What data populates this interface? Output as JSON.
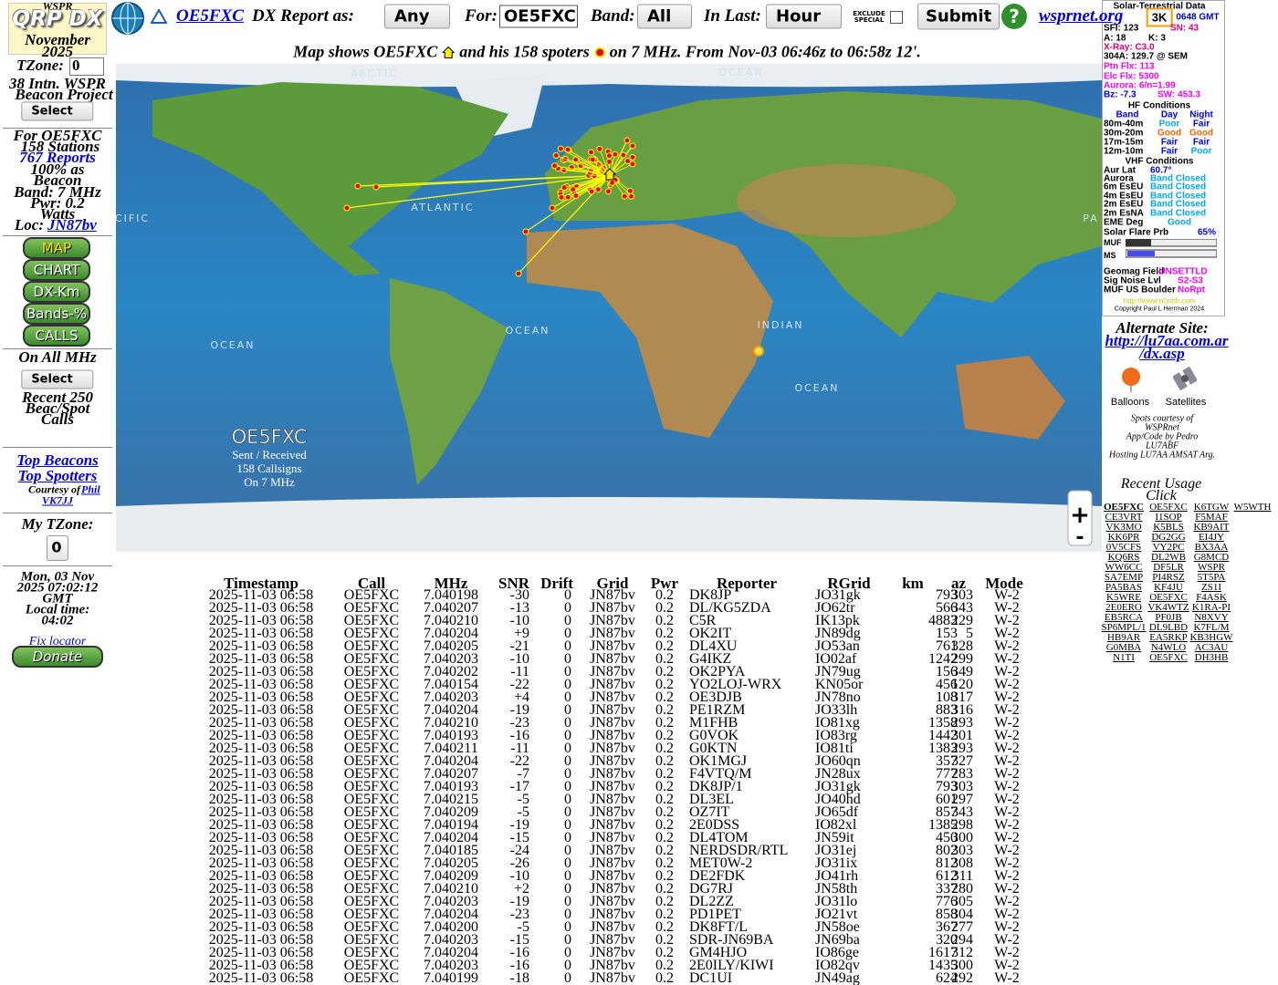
{
  "sidebar": {
    "wspr": "WSPR",
    "logo": "QRP DX",
    "month": "November",
    "year": "2025",
    "tzone_label": "TZone:",
    "tzone_value": "0",
    "project_1": "38 Intn. WSPR",
    "project_2": "Beacon Project",
    "project_select": "Select",
    "for_call": "For OE5FXC",
    "stations": "158 Stations",
    "reports": "767 Reports",
    "beacon_1": "100% as",
    "beacon_2": "Beacon",
    "band": "Band: 7 MHz",
    "pwr": "Pwr: 0.2",
    "watts": "Watts",
    "loc_label": "Loc:",
    "loc": "JN87bv",
    "buttons": [
      "MAP",
      "CHART",
      "DX-Km",
      "Bands-%",
      "CALLS"
    ],
    "all_mhz": "On All MHz",
    "all_select": "Select",
    "recent_1": "Recent 250",
    "recent_2": "Beac/Spot",
    "recent_3": "Calls",
    "top_beacons": "Top Beacons",
    "top_spotters": "Top Spotters",
    "courtesy": "Courtesy of",
    "phil_1": "Phil",
    "phil_2": "VK7JJ",
    "my_tzone": "My TZone:",
    "my_tzone_value": "0",
    "date": "Mon, 03 Nov",
    "time": "2025 07:02:12",
    "gmt": "GMT",
    "local_label": "Local time:",
    "local": "04:02",
    "fix": "Fix locator",
    "donate": "Donate"
  },
  "toolbar": {
    "call": "OE5FXC",
    "report_label": "DX Report as:",
    "report_value": "Any",
    "for_label": "For:",
    "for_value": "OE5FXC",
    "band_label": "Band:",
    "band_value": "All",
    "last_label": "In Last:",
    "last_value": "Hour",
    "exclude_1": "EXCLUDE",
    "exclude_2": "SPECIAL",
    "submit": "Submit",
    "help": "?",
    "site": "wsprnet.org"
  },
  "caption": {
    "part_1": "Map shows OE5FXC",
    "part_2": "and his 158 spoters",
    "part_3": "on 7 MHz. From Nov-03 06:46z to 06:58z 12'."
  },
  "map": {
    "labels": [
      "ARCTIC",
      "OCEAN",
      "ATLANTIC",
      "OCEAN",
      "OCEAN",
      "INDIAN",
      "OCEAN",
      "CIFIC",
      "PA"
    ],
    "overlay": {
      "call": "OE5FXC",
      "line_1": "Sent / Received",
      "line_2": "158 Callsigns",
      "line_3": "On 7 MHz"
    },
    "zoom_in": "+",
    "zoom_out": "-"
  },
  "solar": {
    "title": "Solar-Terrestrial Data",
    "items": [
      "3K",
      "0648 GMT",
      "SFI: 123",
      "SN: 43",
      "A: 18",
      "K: 3",
      "X-Ray: C3.0",
      "304A: 129.7 @ SEM",
      "Ptn Flx: 113",
      "Elc Flx: 5300",
      "Aurora: 6/n=1.99",
      "Bz: -7.3",
      "SW: 453.3",
      "HF Conditions",
      "Band",
      "Day",
      "Night",
      "80m-40m",
      "Poor",
      "Fair",
      "30m-20m",
      "Good",
      "Good",
      "17m-15m",
      "Fair",
      "Fair",
      "12m-10m",
      "Fair",
      "Poor",
      "VHF Conditions",
      "Aur Lat",
      "60.7°",
      "Aurora",
      "Band Closed",
      "6m EsEU",
      "Band Closed",
      "4m EsEU",
      "Band Closed",
      "2m EsEU",
      "Band Closed",
      "2m EsNA",
      "Band Closed",
      "EME Deg",
      "Good",
      "Solar Flare Prb",
      "65%",
      "MUF",
      "MS",
      "Geomag Field",
      "UNSETTLD",
      "Sig Noise Lvl",
      "S2-S3",
      "MUF US Boulder",
      "NoRpt",
      "http://www.n0nbh.com",
      "Copyright Paul L Herrman 2024"
    ]
  },
  "links": {
    "alt_label": "Alternate Site:",
    "alt_url_1": "http://lu7aa.com.ar",
    "alt_url_2": "/dx.asp",
    "balloons": "Balloons",
    "satellites": "Satellites",
    "credit_1": "Spots courtesy of",
    "credit_2": "WSPRnet",
    "credit_3": "App/Code by Pedro",
    "credit_4": "LU7ABF",
    "credit_5": "Hosting LU7AA AMSAT Arg."
  },
  "usage": {
    "title": "Recent Usage",
    "click": "Click",
    "calls": [
      [
        "OE5FXC",
        "OE5FXC",
        "K6TGW",
        "W5WTH"
      ],
      [
        "CE3VRT",
        "I1SOP",
        "F5MAF"
      ],
      [
        "VK3MO",
        "K5BLS",
        "KB9AIT"
      ],
      [
        "KK6PR",
        "DG2GG",
        "EI4JY"
      ],
      [
        "0V5CFS",
        "VY2PC",
        "BX3AA"
      ],
      [
        "KQ6RS",
        "DL2WB",
        "G8MCD"
      ],
      [
        "WW6CC",
        "DF5LR",
        "WSPR"
      ],
      [
        "SA7EMP",
        "PI4RSZ",
        "5T5PA"
      ],
      [
        "PA5BAS",
        "KF4JU",
        "ZS1I"
      ],
      [
        "K5WRE",
        "OE5FXC",
        "F4ASK"
      ],
      [
        "2E0ERO",
        "VK4WTZ",
        "K1RA-PI"
      ],
      [
        "EB5RCA",
        "PF0JB",
        "N8XVY"
      ],
      [
        "SP6MPL/1",
        "DL9LBD",
        "K7FL/M"
      ],
      [
        "HB9AR",
        "EA5RKP",
        "KB3HGW"
      ],
      [
        "G0MBA",
        "N4WLO",
        "AC3AU"
      ],
      [
        "N1TI",
        "OE5FXC",
        "DH3HB"
      ]
    ]
  },
  "table": {
    "headers": [
      "Timestamp",
      "Call",
      "MHz",
      "SNR",
      "Drift",
      "Grid",
      "Pwr",
      "Reporter",
      "RGrid",
      "km",
      "az",
      "Mode"
    ],
    "rows": [
      [
        "2025-11-03 06:58",
        "OE5FXC",
        "7.040198",
        "-30",
        "0",
        "JN87bv",
        "0.2",
        "DK8JP",
        "JO31gk",
        "793",
        "303",
        "W-2"
      ],
      [
        "2025-11-03 06:58",
        "OE5FXC",
        "7.040207",
        "-13",
        "0",
        "JN87bv",
        "0.2",
        "DL/KG5ZDA",
        "JO62tr",
        "566",
        "343",
        "W-2"
      ],
      [
        "2025-11-03 06:58",
        "OE5FXC",
        "7.040210",
        "-10",
        "0",
        "JN87bv",
        "0.2",
        "C5R",
        "IK13pk",
        "4883",
        "229",
        "W-2"
      ],
      [
        "2025-11-03 06:58",
        "OE5FXC",
        "7.040204",
        "+9",
        "0",
        "JN87bv",
        "0.2",
        "OK2IT",
        "JN89dg",
        "153",
        "5",
        "W-2"
      ],
      [
        "2025-11-03 06:58",
        "OE5FXC",
        "7.040205",
        "-21",
        "0",
        "JN87bv",
        "0.2",
        "DL4XU",
        "JO53an",
        "761",
        "328",
        "W-2"
      ],
      [
        "2025-11-03 06:58",
        "OE5FXC",
        "7.040203",
        "-10",
        "0",
        "JN87bv",
        "0.2",
        "G4IKZ",
        "IO02af",
        "1242",
        "299",
        "W-2"
      ],
      [
        "2025-11-03 06:58",
        "OE5FXC",
        "7.040202",
        "-11",
        "0",
        "JN87bv",
        "0.2",
        "OK2PYA",
        "JN79ug",
        "156",
        "349",
        "W-2"
      ],
      [
        "2025-11-03 06:58",
        "OE5FXC",
        "7.040154",
        "-22",
        "0",
        "JN87bv",
        "0.2",
        "YO2LOJ-WRX",
        "KN05or",
        "456",
        "120",
        "W-2"
      ],
      [
        "2025-11-03 06:58",
        "OE5FXC",
        "7.040203",
        "+4",
        "0",
        "JN87bv",
        "0.2",
        "OE3DJB",
        "JN78no",
        "108",
        "317",
        "W-2"
      ],
      [
        "2025-11-03 06:58",
        "OE5FXC",
        "7.040204",
        "-19",
        "0",
        "JN87bv",
        "0.2",
        "PE1RZM",
        "JO33lh",
        "883",
        "316",
        "W-2"
      ],
      [
        "2025-11-03 06:58",
        "OE5FXC",
        "7.040210",
        "-23",
        "0",
        "JN87bv",
        "0.2",
        "M1FHB",
        "IO81xg",
        "1358",
        "293",
        "W-2"
      ],
      [
        "2025-11-03 06:58",
        "OE5FXC",
        "7.040193",
        "-16",
        "0",
        "JN87bv",
        "0.2",
        "G0VOK",
        "IO83rg",
        "1442",
        "301",
        "W-2"
      ],
      [
        "2025-11-03 06:58",
        "OE5FXC",
        "7.040211",
        "-11",
        "0",
        "JN87bv",
        "0.2",
        "G0KTN",
        "IO81ti",
        "1383",
        "293",
        "W-2"
      ],
      [
        "2025-11-03 06:58",
        "OE5FXC",
        "7.040204",
        "-22",
        "0",
        "JN87bv",
        "0.2",
        "OK1MGJ",
        "JO60qn",
        "357",
        "327",
        "W-2"
      ],
      [
        "2025-11-03 06:58",
        "OE5FXC",
        "7.040207",
        "-7",
        "0",
        "JN87bv",
        "0.2",
        "F4VTQ/M",
        "JN28ux",
        "777",
        "283",
        "W-2"
      ],
      [
        "2025-11-03 06:58",
        "OE5FXC",
        "7.040193",
        "-17",
        "0",
        "JN87bv",
        "0.2",
        "DK8JP/1",
        "JO31gk",
        "793",
        "303",
        "W-2"
      ],
      [
        "2025-11-03 06:58",
        "OE5FXC",
        "7.040215",
        "-5",
        "0",
        "JN87bv",
        "0.2",
        "DL3EL",
        "JO40hd",
        "601",
        "297",
        "W-2"
      ],
      [
        "2025-11-03 06:58",
        "OE5FXC",
        "7.040209",
        "-5",
        "0",
        "JN87bv",
        "0.2",
        "OZ7IT",
        "JO65df",
        "857",
        "343",
        "W-2"
      ],
      [
        "2025-11-03 06:58",
        "OE5FXC",
        "7.040194",
        "-19",
        "0",
        "JN87bv",
        "0.2",
        "2E0DSS",
        "IO82xl",
        "1385",
        "298",
        "W-2"
      ],
      [
        "2025-11-03 06:58",
        "OE5FXC",
        "7.040204",
        "-15",
        "0",
        "JN87bv",
        "0.2",
        "DL4TOM",
        "JN59it",
        "450",
        "300",
        "W-2"
      ],
      [
        "2025-11-03 06:58",
        "OE5FXC",
        "7.040185",
        "-24",
        "0",
        "JN87bv",
        "0.2",
        "NERDSDR/RTL",
        "JO31ej",
        "802",
        "303",
        "W-2"
      ],
      [
        "2025-11-03 06:58",
        "OE5FXC",
        "7.040205",
        "-26",
        "0",
        "JN87bv",
        "0.2",
        "MET0W-2",
        "JO31ix",
        "812",
        "308",
        "W-2"
      ],
      [
        "2025-11-03 06:58",
        "OE5FXC",
        "7.040209",
        "-10",
        "0",
        "JN87bv",
        "0.2",
        "DE2FDK",
        "JO41rh",
        "612",
        "311",
        "W-2"
      ],
      [
        "2025-11-03 06:58",
        "OE5FXC",
        "7.040210",
        "+2",
        "0",
        "JN87bv",
        "0.2",
        "DG7RJ",
        "JN58th",
        "337",
        "280",
        "W-2"
      ],
      [
        "2025-11-03 06:58",
        "OE5FXC",
        "7.040203",
        "-19",
        "0",
        "JN87bv",
        "0.2",
        "DL2ZZ",
        "JO31lo",
        "776",
        "305",
        "W-2"
      ],
      [
        "2025-11-03 06:58",
        "OE5FXC",
        "7.040204",
        "-23",
        "0",
        "JN87bv",
        "0.2",
        "PD1PET",
        "JO21vt",
        "858",
        "304",
        "W-2"
      ],
      [
        "2025-11-03 06:58",
        "OE5FXC",
        "7.040200",
        "-5",
        "0",
        "JN87bv",
        "0.2",
        "DK8FT/L",
        "JN58oe",
        "367",
        "277",
        "W-2"
      ],
      [
        "2025-11-03 06:58",
        "OE5FXC",
        "7.040203",
        "-15",
        "0",
        "JN87bv",
        "0.2",
        "SDR-JN69BA",
        "JN69ba",
        "320",
        "294",
        "W-2"
      ],
      [
        "2025-11-03 06:58",
        "OE5FXC",
        "7.040204",
        "-16",
        "0",
        "JN87bv",
        "0.2",
        "GM4HJO",
        "IO86ge",
        "1617",
        "312",
        "W-2"
      ],
      [
        "2025-11-03 06:58",
        "OE5FXC",
        "7.040203",
        "-16",
        "0",
        "JN87bv",
        "0.2",
        "2E0ILY/KIWI",
        "IO82qv",
        "1435",
        "300",
        "W-2"
      ],
      [
        "2025-11-03 06:58",
        "OE5FXC",
        "7.040199",
        "-18",
        "0",
        "JN87bv",
        "0.2",
        "DC1UI",
        "JN49ag",
        "624",
        "292",
        "W-2"
      ]
    ]
  }
}
